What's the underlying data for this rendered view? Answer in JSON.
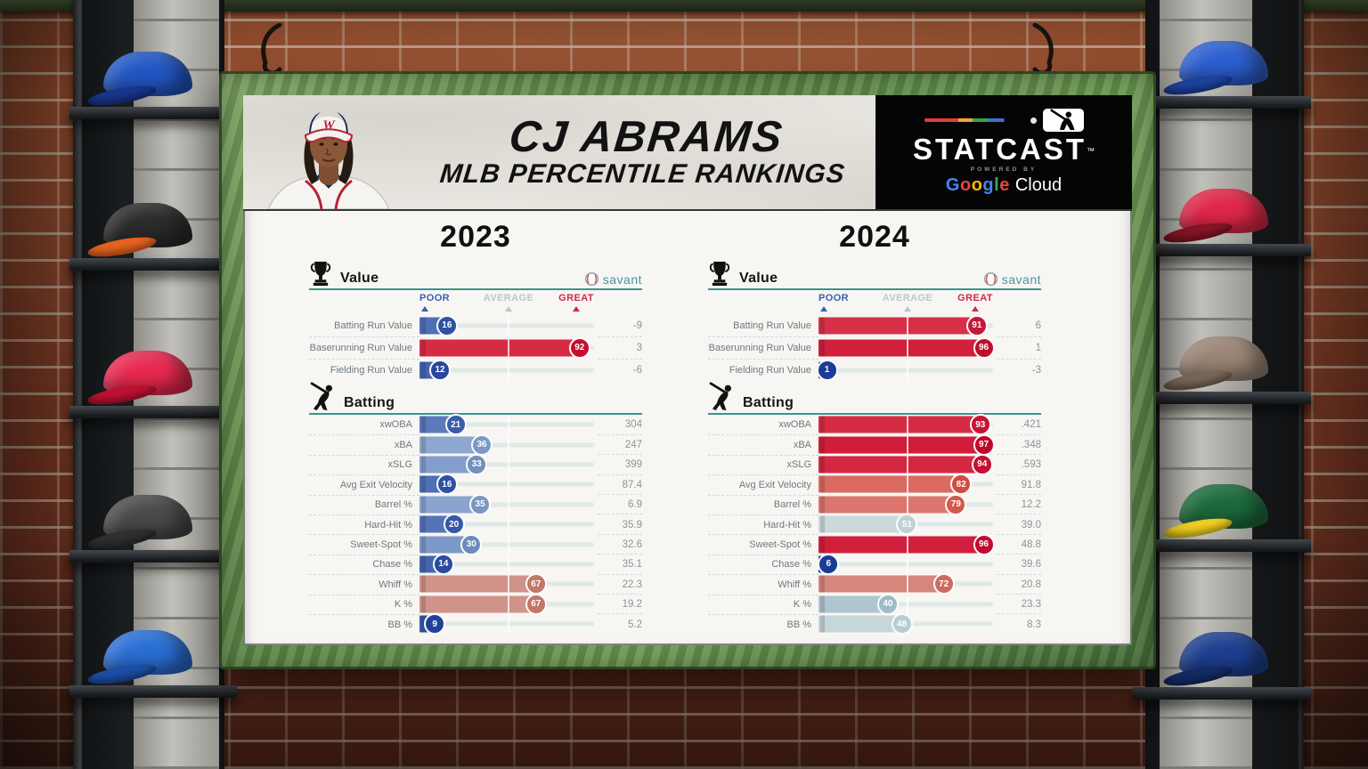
{
  "header": {
    "player_name": "CJ ABRAMS",
    "subtitle": "MLB PERCENTILE RANKINGS"
  },
  "branding": {
    "statcast": "STATCAST",
    "tm": "™",
    "powered_by": "POWERED BY",
    "google_letters": [
      "G",
      "o",
      "o",
      "g",
      "l",
      "e"
    ],
    "google_colors": [
      "#4285F4",
      "#EA4335",
      "#FBBC05",
      "#4285F4",
      "#34A853",
      "#EA4335"
    ],
    "cloud": "Cloud",
    "savant": "savant"
  },
  "scale_labels": {
    "poor": "POOR",
    "average": "AVERAGE",
    "great": "GREAT"
  },
  "colors": {
    "rule_teal": "#3a948b",
    "track": "#dfe9e7",
    "dash": "#c9ddd8",
    "poor_label": "#3a5fae",
    "average_label": "#bcc7cf",
    "great_label": "#d22843",
    "label_text": "#6e787e",
    "value_text": "#8b9396",
    "frame_green": "#5b8646",
    "board_bg": "#f7f6f3"
  },
  "chart_data": [
    {
      "type": "bar",
      "year": "2023",
      "xlim": [
        0,
        100
      ],
      "legend_markers": [
        "POOR",
        "AVERAGE",
        "GREAT"
      ],
      "sections": [
        {
          "title": "Value",
          "icon": "trophy-icon",
          "show_savant": true,
          "show_scale": true,
          "rows": [
            {
              "label": "Batting Run Value",
              "percentile": 16,
              "value": "-9",
              "bar_color": "#4f6fb6",
              "bubble_color": "#2e51a5"
            },
            {
              "label": "Baserunning Run Value",
              "percentile": 92,
              "value": "3",
              "bar_color": "#d62b45",
              "bubble_color": "#c50f31"
            },
            {
              "label": "Fielding Run Value",
              "percentile": 12,
              "value": "-6",
              "bar_color": "#4365b0",
              "bubble_color": "#27489e"
            }
          ]
        },
        {
          "title": "Batting",
          "icon": "batter-icon",
          "show_savant": false,
          "show_scale": false,
          "rows": [
            {
              "label": "xwOBA",
              "percentile": 21,
              "value": "304",
              "bar_color": "#5a7abc",
              "bubble_color": "#3a5daa"
            },
            {
              "label": "xBA",
              "percentile": 36,
              "value": "247",
              "bar_color": "#8ea7d0",
              "bubble_color": "#7e99c6"
            },
            {
              "label": "xSLG",
              "percentile": 33,
              "value": "399",
              "bar_color": "#839ecb",
              "bubble_color": "#7390bf"
            },
            {
              "label": "Avg Exit Velocity",
              "percentile": 16,
              "value": "87.4",
              "bar_color": "#4f6fb6",
              "bubble_color": "#2e51a5"
            },
            {
              "label": "Barrel %",
              "percentile": 35,
              "value": "6.9",
              "bar_color": "#8aa4ce",
              "bubble_color": "#7a96c3"
            },
            {
              "label": "Hard-Hit %",
              "percentile": 20,
              "value": "35.9",
              "bar_color": "#5574b8",
              "bubble_color": "#3558a8"
            },
            {
              "label": "Sweet-Spot %",
              "percentile": 30,
              "value": "32.6",
              "bar_color": "#7d99c8",
              "bubble_color": "#6d8cbc"
            },
            {
              "label": "Chase %",
              "percentile": 14,
              "value": "35.1",
              "bar_color": "#4566ae",
              "bubble_color": "#2a4b9f"
            },
            {
              "label": "Whiff %",
              "percentile": 67,
              "value": "22.3",
              "bar_color": "#d0938a",
              "bubble_color": "#c17769"
            },
            {
              "label": "K %",
              "percentile": 67,
              "value": "19.2",
              "bar_color": "#d0938a",
              "bubble_color": "#c17769"
            },
            {
              "label": "BB %",
              "percentile": 9,
              "value": "5.2",
              "bar_color": "#3a58a8",
              "bubble_color": "#20409a"
            }
          ]
        }
      ]
    },
    {
      "type": "bar",
      "year": "2024",
      "xlim": [
        0,
        100
      ],
      "legend_markers": [
        "POOR",
        "AVERAGE",
        "GREAT"
      ],
      "sections": [
        {
          "title": "Value",
          "icon": "trophy-icon",
          "show_savant": true,
          "show_scale": true,
          "rows": [
            {
              "label": "Batting Run Value",
              "percentile": 91,
              "value": "6",
              "bar_color": "#d73048",
              "bubble_color": "#c6183a"
            },
            {
              "label": "Baserunning Run Value",
              "percentile": 96,
              "value": "1",
              "bar_color": "#d21f3c",
              "bubble_color": "#c00d2e"
            },
            {
              "label": "Fielding Run Value",
              "percentile": 1,
              "value": "-3",
              "bar_color": "#2e4fa3",
              "bubble_color": "#1c3c97"
            }
          ]
        },
        {
          "title": "Batting",
          "icon": "batter-icon",
          "show_savant": false,
          "show_scale": false,
          "rows": [
            {
              "label": "xwOBA",
              "percentile": 93,
              "value": ".421",
              "bar_color": "#d52c44",
              "bubble_color": "#c51336"
            },
            {
              "label": "xBA",
              "percentile": 97,
              "value": ".348",
              "bar_color": "#d01d3a",
              "bubble_color": "#bd082a"
            },
            {
              "label": "xSLG",
              "percentile": 94,
              "value": ".593",
              "bar_color": "#d42741",
              "bubble_color": "#c31033"
            },
            {
              "label": "Avg Exit Velocity",
              "percentile": 82,
              "value": "91.8",
              "bar_color": "#da6a62",
              "bubble_color": "#cf4b41"
            },
            {
              "label": "Barrel %",
              "percentile": 79,
              "value": "12.2",
              "bar_color": "#dc766d",
              "bubble_color": "#d25a4d"
            },
            {
              "label": "Hard-Hit %",
              "percentile": 51,
              "value": "39.0",
              "bar_color": "#cbd9db",
              "bubble_color": "#bed2d5"
            },
            {
              "label": "Sweet-Spot %",
              "percentile": 96,
              "value": "48.8",
              "bar_color": "#d21f3c",
              "bubble_color": "#c00d2e"
            },
            {
              "label": "Chase %",
              "percentile": 6,
              "value": "39.6",
              "bar_color": "#2c4da2",
              "bubble_color": "#1b3b96"
            },
            {
              "label": "Whiff %",
              "percentile": 72,
              "value": "20.8",
              "bar_color": "#d6867c",
              "bubble_color": "#cb6c5e"
            },
            {
              "label": "K %",
              "percentile": 40,
              "value": "23.3",
              "bar_color": "#afc5d0",
              "bubble_color": "#a0bac8"
            },
            {
              "label": "BB %",
              "percentile": 48,
              "value": "8.3",
              "bar_color": "#c6d6d9",
              "bubble_color": "#b8cdd2"
            }
          ]
        }
      ]
    }
  ],
  "background": {
    "caps_left": [
      {
        "crown": "#2257c4",
        "brim": "#17368f"
      },
      {
        "crown": "#2b2b2b",
        "brim": "#e8641f"
      },
      {
        "crown": "#e8294f",
        "brim": "#c01232"
      },
      {
        "crown": "#4a4a4a",
        "brim": "#303030"
      },
      {
        "crown": "#2a6fd4",
        "brim": "#1c4fa8"
      }
    ],
    "caps_right": [
      {
        "crown": "#2c5fd0",
        "brim": "#1d43a0"
      },
      {
        "crown": "#e02848",
        "brim": "#8a1426"
      },
      {
        "crown": "#9b8576",
        "brim": "#7a6757"
      },
      {
        "crown": "#1d6b3c",
        "brim": "#f2d022"
      },
      {
        "crown": "#1d3f8f",
        "brim": "#142c66"
      }
    ]
  }
}
